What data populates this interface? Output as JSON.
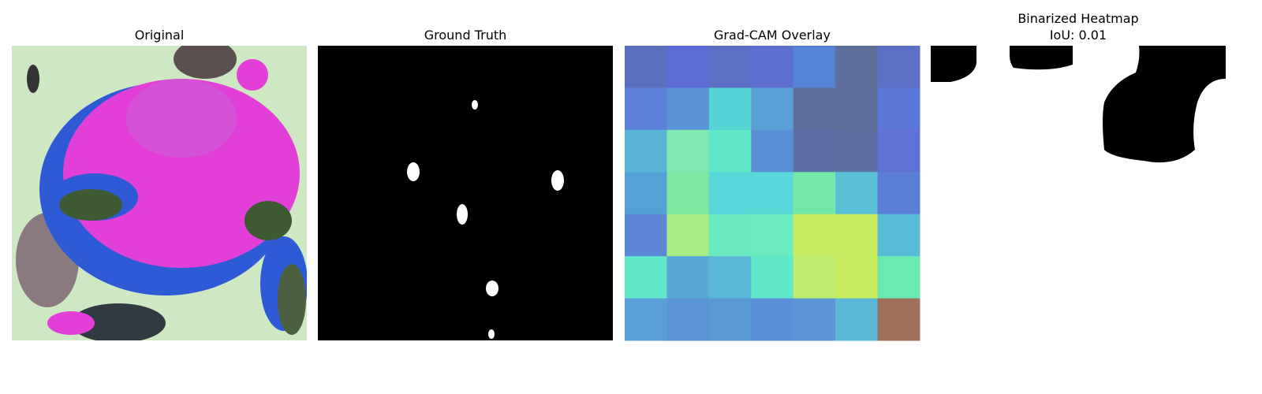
{
  "panels": [
    {
      "title": "Original"
    },
    {
      "title": "Ground Truth"
    },
    {
      "title": "Grad-CAM Overlay",
      "cell_colors": [
        [
          "#5b6fbf",
          "#5b6cd4",
          "#5b6fc4",
          "#5c6fd0",
          "#5683d6",
          "#5e6f9a",
          "#5b6fc4"
        ],
        [
          "#5d80d9",
          "#5b93d6",
          "#54d4d4",
          "#5aa0d6",
          "#5e6f9a",
          "#5e6f9a",
          "#5b78d6"
        ],
        [
          "#5ab4d6",
          "#7ee8b0",
          "#5ee8c8",
          "#5a8fd6",
          "#5e6fa8",
          "#5e6fa0",
          "#5f73d6"
        ],
        [
          "#55a0d6",
          "#7ee8a0",
          "#58d8d8",
          "#58d8d8",
          "#74e8a8",
          "#5ac0d6",
          "#5b7fd6"
        ],
        [
          "#5c86d6",
          "#a8ec88",
          "#6ae8c0",
          "#6aecc0",
          "#c8ec60",
          "#c8ec60",
          "#58bcd6"
        ],
        [
          "#60e8c8",
          "#5aa8d6",
          "#5ab8d6",
          "#60e8c8",
          "#c0ec70",
          "#c8ec60",
          "#6aeab0"
        ],
        [
          "#5aa0d6",
          "#5c94d6",
          "#5c9ad6",
          "#5c90d6",
          "#5c94d6",
          "#5ab8d6",
          "#9e725a"
        ]
      ]
    },
    {
      "title": "Binarized Heatmap",
      "subtitle": "IoU: 0.01"
    }
  ]
}
